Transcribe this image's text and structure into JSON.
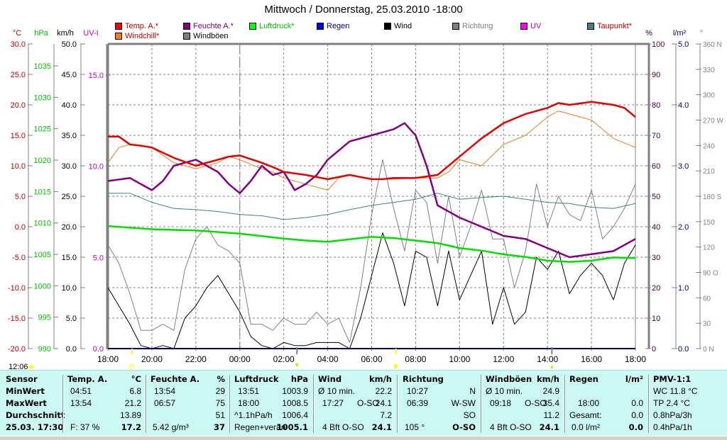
{
  "title": "Mittwoch / Donnerstag, 25.03.2010  -18:00",
  "legend": [
    {
      "label": "Temp. A.*",
      "color": "#ff0000",
      "text_color": "#c00000"
    },
    {
      "label": "Windchill*",
      "color": "#ff8000",
      "text_color": "#c00000"
    },
    {
      "label": "Feuchte A.*",
      "color": "#800080",
      "text_color": "#800080"
    },
    {
      "label": "Windböen",
      "color": "#808080",
      "text_color": "#000000"
    },
    {
      "label": "Luftdruck*",
      "color": "#00ff00",
      "text_color": "#00c000"
    },
    {
      "label": "Regen",
      "color": "#0000ff",
      "text_color": "#000080"
    },
    {
      "label": "Wind",
      "color": "#000000",
      "text_color": "#000000"
    },
    {
      "label": "Richtung",
      "color": "#808080",
      "text_color": "#808080"
    },
    {
      "label": "UV",
      "color": "#ff00ff",
      "text_color": "#c000c0"
    },
    {
      "label": "Taupunkt*",
      "color": "#408080",
      "text_color": "#c00000"
    }
  ],
  "chart_data": {
    "type": "line",
    "title": "Mittwoch / Donnerstag, 25.03.2010  -18:00",
    "x_tick_labels": [
      "18:00",
      "20:00",
      "22:00",
      "00:00",
      "02:00",
      "04:00",
      "06:00",
      "08:00",
      "10:00",
      "12:00",
      "14:00",
      "16:00",
      "18:00"
    ],
    "xlim_hours": [
      0,
      24
    ],
    "axes": {
      "temp": {
        "unit": "°C",
        "ticks": [
          "30.0",
          "25.0",
          "20.0",
          "15.0",
          "10.0",
          "5.0",
          "0.0",
          "-5.0",
          "-10.0",
          "-15.0",
          "-20.0"
        ],
        "range": [
          -20,
          30
        ],
        "color": "#c00000"
      },
      "pressure": {
        "unit": "hPa",
        "ticks": [
          "1035",
          "1030",
          "1025",
          "1020",
          "1015",
          "1010",
          "1005",
          "1000",
          "995",
          "990"
        ],
        "range": [
          990,
          1038.5
        ],
        "color": "#00c000"
      },
      "wind": {
        "unit": "km/h",
        "ticks": [
          "50.0",
          "45.0",
          "40.0",
          "35.0",
          "30.0",
          "25.0",
          "20.0",
          "15.0",
          "10.0",
          "5.0",
          "0.0"
        ],
        "range": [
          0,
          50
        ],
        "color": "#000000"
      },
      "uv": {
        "unit": "UV-I",
        "ticks": [
          "15.0",
          "10.0",
          "5.0",
          "0.0"
        ],
        "range": [
          0,
          16.7
        ],
        "color": "#c000c0"
      },
      "humidity": {
        "unit": "%",
        "ticks": [
          "100",
          "90",
          "80",
          "70",
          "60",
          "50",
          "40",
          "30",
          "20",
          "10",
          "0"
        ],
        "range": [
          0,
          100
        ],
        "color": "#400040"
      },
      "rain": {
        "unit": "l/m²",
        "ticks": [
          "5.0",
          "4.0",
          "3.0",
          "2.0",
          "1.0",
          "0.0"
        ],
        "range": [
          0,
          5
        ],
        "color": "#000080"
      },
      "direction": {
        "unit": "°",
        "ticks": [
          "360 N",
          "330",
          "300",
          "270 W",
          "240",
          "210",
          "180 S",
          "150",
          "120",
          "90  O",
          "60",
          "30",
          "0    N"
        ],
        "range": [
          0,
          360
        ],
        "color": "#808080"
      }
    },
    "series": [
      {
        "name": "Temp. A.",
        "axis": "temp",
        "color": "#e00000",
        "x": [
          0,
          0.5,
          1,
          1.5,
          2,
          3,
          4,
          5,
          5.5,
          6,
          7,
          7.5,
          8,
          9,
          10,
          11,
          12,
          12.5,
          13,
          14,
          15,
          16,
          17,
          18,
          19,
          20,
          20.5,
          21,
          22,
          23,
          23.5,
          24
        ],
        "values": [
          14.8,
          14.8,
          13.5,
          13.3,
          13.0,
          11.3,
          10.0,
          11.0,
          11.5,
          11.7,
          10.5,
          9.8,
          9.0,
          8.5,
          7.8,
          8.5,
          7.8,
          7.8,
          8.0,
          8.0,
          8.5,
          11.5,
          14.5,
          17.0,
          18.5,
          19.5,
          20.3,
          20.0,
          20.5,
          20.0,
          19.5,
          18.0
        ]
      },
      {
        "name": "Windchill",
        "axis": "temp",
        "color": "#e08020",
        "x": [
          0,
          0.5,
          1,
          1.5,
          2,
          3,
          4,
          5,
          5.5,
          6,
          7,
          7.5,
          8,
          9,
          10,
          10.5,
          11,
          12,
          13,
          14,
          15,
          15.5,
          16,
          17,
          18,
          19,
          20,
          20.5,
          21,
          22,
          23,
          24
        ],
        "values": [
          10.5,
          13.0,
          13.5,
          13.3,
          13.0,
          10.5,
          9.5,
          10.5,
          11.5,
          11.0,
          9.5,
          9.0,
          8.0,
          7.0,
          6.0,
          8.0,
          8.5,
          7.8,
          7.8,
          8.0,
          8.0,
          9.0,
          11.0,
          10.0,
          13.5,
          15.0,
          18.0,
          19.0,
          18.5,
          17.5,
          14.5,
          13.0
        ]
      },
      {
        "name": "Feuchte A.",
        "axis": "humidity",
        "color": "#800080",
        "x": [
          0,
          1,
          2,
          2.5,
          3,
          4,
          4.5,
          5,
          5.5,
          6,
          6.5,
          7,
          7.5,
          8,
          8.5,
          9,
          9.5,
          10,
          11,
          12,
          13,
          13.5,
          14,
          14.5,
          15,
          16,
          17,
          18,
          19,
          20,
          21,
          22,
          23,
          24
        ],
        "values": [
          55,
          56,
          52,
          55,
          60,
          62,
          60,
          58,
          54,
          51,
          55,
          60,
          57,
          58,
          52,
          54,
          57,
          62,
          68,
          70,
          72,
          74,
          70,
          60,
          47,
          43,
          40,
          37,
          36,
          33,
          30,
          31,
          32,
          36
        ]
      },
      {
        "name": "Taupunkt",
        "axis": "temp",
        "color": "#408080",
        "x": [
          0,
          1,
          2,
          3,
          4,
          5,
          6,
          7,
          8,
          9,
          10,
          11,
          12,
          13,
          14,
          15,
          16,
          17,
          18,
          19,
          20,
          21,
          22,
          23,
          24
        ],
        "values": [
          5.5,
          5.5,
          4.0,
          3.0,
          2.8,
          2.5,
          2.0,
          1.8,
          1.2,
          1.5,
          2.0,
          2.8,
          3.5,
          4.0,
          4.5,
          5.5,
          4.5,
          4.8,
          5.0,
          4.5,
          4.0,
          3.8,
          3.2,
          3.0,
          3.8
        ]
      },
      {
        "name": "Luftdruck",
        "axis": "pressure",
        "color": "#00dd00",
        "x": [
          0,
          2,
          4,
          6,
          8,
          9,
          10,
          11,
          12,
          13,
          14,
          15,
          16,
          17,
          18,
          19,
          20,
          21,
          22,
          23,
          24
        ],
        "values": [
          1009.5,
          1009.0,
          1008.8,
          1008.3,
          1007.5,
          1007.2,
          1007.0,
          1007.4,
          1007.8,
          1007.6,
          1007.2,
          1006.8,
          1006.0,
          1005.6,
          1005.0,
          1004.6,
          1004.0,
          1003.8,
          1004.0,
          1004.5,
          1004.4
        ]
      },
      {
        "name": "Wind",
        "axis": "wind",
        "color": "#000000",
        "x": [
          0,
          0.5,
          1,
          1.5,
          2,
          2.5,
          3,
          3.5,
          4,
          4.5,
          5,
          5.5,
          6,
          6.5,
          7,
          7.5,
          8,
          8.5,
          9,
          9.5,
          10,
          10.5,
          11,
          11.5,
          12,
          12.5,
          13,
          13.5,
          14,
          14.5,
          15,
          15.5,
          16,
          16.5,
          17,
          17.5,
          18,
          18.5,
          19,
          19.5,
          20,
          20.5,
          21,
          21.5,
          22,
          22.5,
          23,
          23.5,
          24
        ],
        "values": [
          10,
          7,
          4,
          0.5,
          0,
          0.5,
          0,
          5,
          7,
          10,
          12,
          9,
          6,
          2,
          0.5,
          0,
          1,
          0.5,
          0.5,
          1,
          1,
          1,
          0,
          5,
          12,
          19,
          14,
          7,
          16,
          15,
          7,
          16,
          8,
          12,
          16,
          4,
          10,
          4,
          6,
          15,
          13,
          16,
          9,
          12,
          14,
          12,
          8,
          14,
          17
        ]
      },
      {
        "name": "Windböen",
        "axis": "wind",
        "color": "#808080",
        "x": [
          0,
          0.5,
          1,
          1.5,
          2,
          2.5,
          3,
          3.5,
          4,
          4.5,
          5,
          5.5,
          6,
          6.5,
          7,
          7.5,
          8,
          8.5,
          9,
          9.5,
          10,
          10.5,
          11,
          11.5,
          12,
          12.5,
          13,
          13.5,
          14,
          14.5,
          15,
          15.5,
          16,
          16.5,
          17,
          17.5,
          18,
          18.5,
          19,
          19.5,
          20,
          20.5,
          21,
          21.5,
          22,
          22.5,
          23,
          23.5,
          24
        ],
        "values": [
          17,
          14,
          9,
          3,
          3,
          4,
          3,
          13,
          18,
          20,
          17,
          16,
          14,
          4,
          4,
          3,
          5,
          4,
          4,
          6,
          4,
          5,
          1,
          10,
          22,
          31,
          23,
          16,
          26,
          24,
          14,
          25,
          15,
          20,
          26,
          18,
          18,
          10,
          16,
          27,
          20,
          25,
          22,
          21,
          26,
          18,
          20,
          23,
          27
        ]
      },
      {
        "name": "Regen",
        "axis": "rain",
        "color": "#000080",
        "x": [
          0,
          24
        ],
        "values": [
          0,
          0
        ]
      }
    ]
  },
  "markers": {
    "sunrise_label": "12:06"
  },
  "panel": {
    "sensor": {
      "header": "Sensor",
      "rows": [
        "MinWert",
        "MaxWert",
        "Durchschnitt",
        "25.03. 17:30"
      ]
    },
    "temp": {
      "header": "Temp. A.",
      "unit": "°C",
      "rows": [
        [
          "04:51",
          "6.8"
        ],
        [
          "13:54",
          "21.2"
        ],
        [
          "",
          "13.89"
        ],
        [
          "F: 37 %",
          "17.2"
        ]
      ]
    },
    "feuchte": {
      "header": "Feuchte A.",
      "unit": "%",
      "rows": [
        [
          "13:54",
          "29"
        ],
        [
          "06:57",
          "75"
        ],
        [
          "",
          "51"
        ],
        [
          "5.42 g/m³",
          "37"
        ]
      ]
    },
    "luftdruck": {
      "header": "Luftdruck",
      "unit": "hPa",
      "rows": [
        [
          "13:51",
          "1003.9"
        ],
        [
          "18:00",
          "1008.5"
        ],
        [
          "^1.1hPa/h",
          "1006.4"
        ],
        [
          "Regen+verän",
          "1005.1"
        ]
      ]
    },
    "wind": {
      "header": "Wind",
      "unit": "km/h",
      "rows": [
        [
          "Ø 10 min.",
          "",
          "22.2"
        ],
        [
          "17:27",
          "O-SO",
          "24.1"
        ],
        [
          "",
          "",
          "7.2"
        ],
        [
          "4 Bft O-SO",
          "",
          "24.1"
        ]
      ]
    },
    "richtung": {
      "header": "Richtung",
      "unit": "",
      "rows": [
        [
          "10:27",
          "N"
        ],
        [
          "06:39",
          "W-SW"
        ],
        [
          "",
          "SO"
        ],
        [
          "105 °",
          "O-SO"
        ]
      ]
    },
    "boeen": {
      "header": "Windböen",
      "unit": "km/h",
      "rows": [
        [
          "Ø 10 min.",
          "",
          "24.9"
        ],
        [
          "09:18",
          "O-SO",
          "35.4"
        ],
        [
          "",
          "",
          "11.2"
        ],
        [
          "4 Bft O-SO",
          "",
          "24.1"
        ]
      ]
    },
    "regen": {
      "header": "Regen",
      "unit": "l/m²",
      "rows": [
        [
          "",
          ""
        ],
        [
          "18:00",
          "0.0"
        ],
        [
          "Gesamt:",
          "0.0"
        ],
        [
          "0.0 l/m²",
          "0.0"
        ]
      ]
    },
    "pmv": {
      "header": "PMV-1:1",
      "rows": [
        "WC 11.8 °C",
        "TP 2.4 °C",
        "0.8hPa/3h",
        "0.4hPa/1h"
      ]
    }
  }
}
